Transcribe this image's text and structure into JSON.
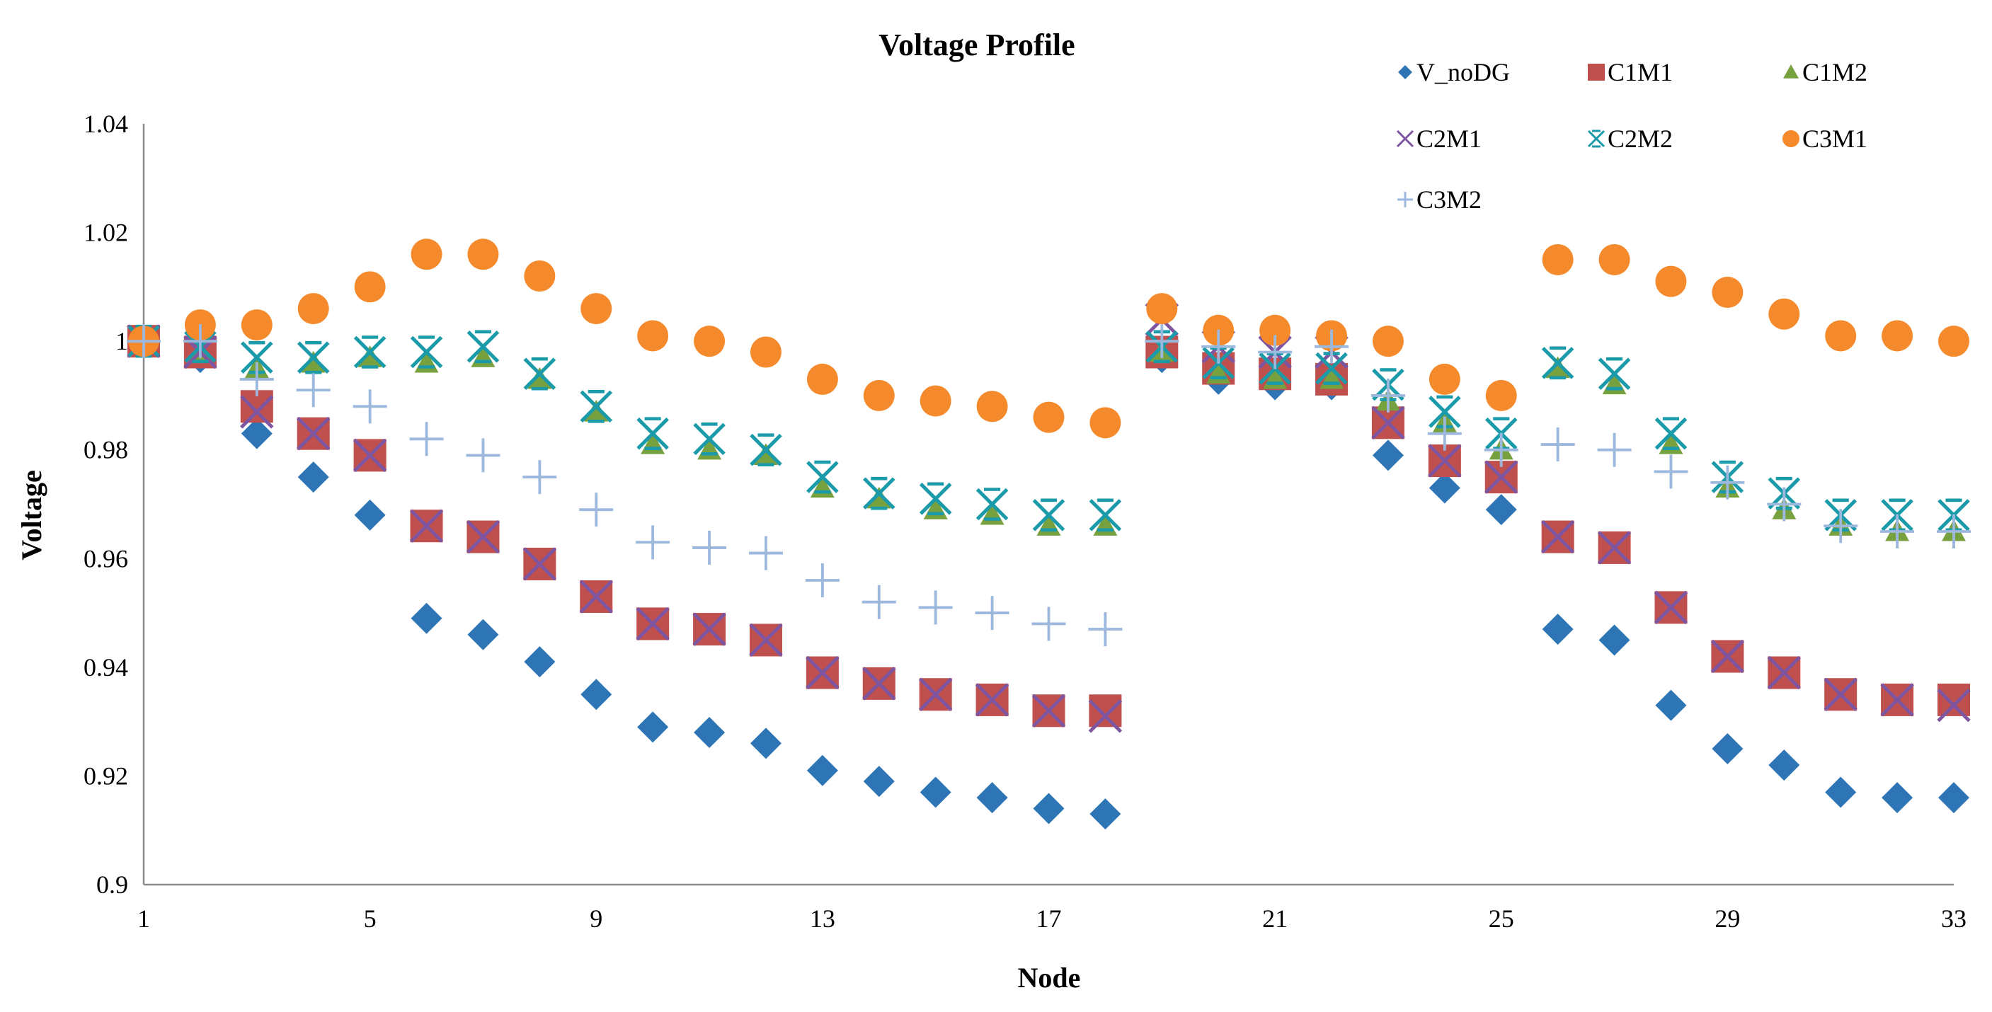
{
  "chart_data": {
    "type": "scatter",
    "title": "Voltage Profile",
    "xlabel": "Node",
    "ylabel": "Voltage",
    "xlim": [
      1,
      33
    ],
    "ylim": [
      0.9,
      1.04
    ],
    "x_ticks": [
      "1",
      "5",
      "9",
      "13",
      "17",
      "21",
      "25",
      "29",
      "33"
    ],
    "y_ticks": [
      "0.9",
      "0.92",
      "0.94",
      "0.96",
      "0.98",
      "1",
      "1.02",
      "1.04"
    ],
    "x": [
      1,
      2,
      3,
      4,
      5,
      6,
      7,
      8,
      9,
      10,
      11,
      12,
      13,
      14,
      15,
      16,
      17,
      18,
      19,
      20,
      21,
      22,
      23,
      24,
      25,
      26,
      27,
      28,
      29,
      30,
      31,
      32,
      33
    ],
    "legend_position": "top-right",
    "series": [
      {
        "name": "V_noDG",
        "marker": "diamond",
        "color": "#2E75B6",
        "values": [
          1.0,
          0.997,
          0.983,
          0.975,
          0.968,
          0.949,
          0.946,
          0.941,
          0.935,
          0.929,
          0.928,
          0.926,
          0.921,
          0.919,
          0.917,
          0.916,
          0.914,
          0.913,
          0.997,
          0.993,
          0.992,
          0.992,
          0.979,
          0.973,
          0.969,
          0.947,
          0.945,
          0.933,
          0.925,
          0.922,
          0.917,
          0.916,
          0.916
        ]
      },
      {
        "name": "C1M1",
        "marker": "square",
        "color": "#C0504D",
        "values": [
          1.0,
          0.998,
          0.988,
          0.983,
          0.979,
          0.966,
          0.964,
          0.959,
          0.953,
          0.948,
          0.947,
          0.945,
          0.939,
          0.937,
          0.935,
          0.934,
          0.932,
          0.932,
          0.998,
          0.995,
          0.994,
          0.993,
          0.985,
          0.978,
          0.975,
          0.964,
          0.962,
          0.951,
          0.942,
          0.939,
          0.935,
          0.934,
          0.934
        ]
      },
      {
        "name": "C1M2",
        "marker": "triangle",
        "color": "#77A03E",
        "values": [
          1.0,
          0.998,
          0.995,
          0.996,
          0.997,
          0.996,
          0.997,
          0.993,
          0.987,
          0.981,
          0.98,
          0.979,
          0.973,
          0.971,
          0.969,
          0.968,
          0.966,
          0.966,
          0.998,
          0.994,
          0.993,
          0.993,
          0.989,
          0.985,
          0.98,
          0.995,
          0.992,
          0.981,
          0.973,
          0.969,
          0.966,
          0.965,
          0.965
        ]
      },
      {
        "name": "C2M1",
        "marker": "x",
        "color": "#7E55A0",
        "values": [
          1.0,
          0.998,
          0.987,
          0.983,
          0.979,
          0.966,
          0.964,
          0.959,
          0.953,
          0.948,
          0.947,
          0.945,
          0.939,
          0.937,
          0.935,
          0.934,
          0.932,
          0.931,
          1.004,
          0.999,
          0.998,
          0.998,
          0.985,
          0.978,
          0.975,
          0.964,
          0.962,
          0.951,
          0.942,
          0.939,
          0.935,
          0.934,
          0.933
        ]
      },
      {
        "name": "C2M2",
        "marker": "star",
        "color": "#1B9AAA",
        "values": [
          1.0,
          0.999,
          0.997,
          0.997,
          0.998,
          0.998,
          0.999,
          0.994,
          0.988,
          0.983,
          0.982,
          0.98,
          0.975,
          0.972,
          0.971,
          0.97,
          0.968,
          0.968,
          0.999,
          0.996,
          0.995,
          0.995,
          0.992,
          0.987,
          0.983,
          0.996,
          0.994,
          0.983,
          0.975,
          0.972,
          0.968,
          0.968,
          0.968
        ]
      },
      {
        "name": "C3M1",
        "marker": "circle",
        "color": "#F58A2C",
        "values": [
          1.0,
          1.003,
          1.003,
          1.006,
          1.01,
          1.016,
          1.016,
          1.012,
          1.006,
          1.001,
          1.0,
          0.998,
          0.993,
          0.99,
          0.989,
          0.988,
          0.986,
          0.985,
          1.006,
          1.002,
          1.002,
          1.001,
          1.0,
          0.993,
          0.99,
          1.015,
          1.015,
          1.011,
          1.009,
          1.005,
          1.001,
          1.001,
          1.0
        ]
      },
      {
        "name": "C3M2",
        "marker": "plus",
        "color": "#9DB8DD",
        "values": [
          1.0,
          1.0,
          0.993,
          0.991,
          0.988,
          0.982,
          0.979,
          0.975,
          0.969,
          0.963,
          0.962,
          0.961,
          0.956,
          0.952,
          0.951,
          0.95,
          0.948,
          0.947,
          1.0,
          0.999,
          0.998,
          0.999,
          0.99,
          0.983,
          0.98,
          0.981,
          0.98,
          0.976,
          0.974,
          0.97,
          0.966,
          0.965,
          0.965
        ]
      }
    ]
  }
}
